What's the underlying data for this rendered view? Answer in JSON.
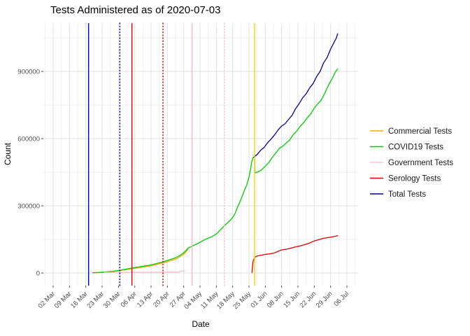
{
  "chart_data": {
    "type": "line",
    "title": "Tests Administered as of 2020-07-03",
    "xlabel": "Date",
    "ylabel": "Count",
    "legend_position": "right",
    "grid": true,
    "x_axis": {
      "unit": "days since 2020-03-02",
      "minor_step_days": 3.5,
      "ticks": [
        {
          "day": 0,
          "label": "02 Mar"
        },
        {
          "day": 7,
          "label": "09 Mar"
        },
        {
          "day": 14,
          "label": "16 Mar"
        },
        {
          "day": 21,
          "label": "23 Mar"
        },
        {
          "day": 28,
          "label": "30 Mar"
        },
        {
          "day": 35,
          "label": "06 Apr"
        },
        {
          "day": 42,
          "label": "13 Apr"
        },
        {
          "day": 49,
          "label": "20 Apr"
        },
        {
          "day": 56,
          "label": "27 Apr"
        },
        {
          "day": 63,
          "label": "04 May"
        },
        {
          "day": 70,
          "label": "11 May"
        },
        {
          "day": 77,
          "label": "18 May"
        },
        {
          "day": 84,
          "label": "25 May"
        },
        {
          "day": 91,
          "label": "01 Jun"
        },
        {
          "day": 98,
          "label": "08 Jun"
        },
        {
          "day": 105,
          "label": "15 Jun"
        },
        {
          "day": 112,
          "label": "22 Jun"
        },
        {
          "day": 119,
          "label": "29 Jun"
        },
        {
          "day": 126,
          "label": "06 Jul"
        }
      ]
    },
    "y_axis": {
      "range": [
        0,
        1115000
      ],
      "ticks": [
        {
          "value": 0,
          "label": "0"
        },
        {
          "value": 300000,
          "label": "300000"
        },
        {
          "value": 600000,
          "label": "600000"
        },
        {
          "value": 900000,
          "label": "900000"
        }
      ],
      "minor_values": [
        150000,
        450000,
        750000,
        1050000
      ]
    },
    "series": [
      {
        "name": "Commercial Tests",
        "color": "#FFA500",
        "dash": "solid",
        "points": [
          [
            17,
            500
          ],
          [
            20,
            2000
          ],
          [
            23,
            4200
          ],
          [
            26,
            7000
          ],
          [
            28,
            9500
          ],
          [
            31,
            14500
          ],
          [
            35,
            21000
          ],
          [
            38,
            26000
          ],
          [
            42,
            32000
          ],
          [
            45,
            39500
          ],
          [
            47,
            44500
          ],
          [
            49,
            51000
          ],
          [
            52,
            60000
          ],
          [
            54,
            70000
          ],
          [
            56,
            83000
          ],
          [
            57,
            94000
          ],
          [
            58,
            110000
          ]
        ]
      },
      {
        "name": "COVID19 Tests",
        "color": "#00CC00",
        "dash": "solid",
        "points": [
          [
            17,
            800
          ],
          [
            20,
            2500
          ],
          [
            23,
            5000
          ],
          [
            26,
            8000
          ],
          [
            28,
            11000
          ],
          [
            31,
            17000
          ],
          [
            35,
            24000
          ],
          [
            38,
            29000
          ],
          [
            42,
            36000
          ],
          [
            45,
            44000
          ],
          [
            47,
            49000
          ],
          [
            49,
            56000
          ],
          [
            52,
            66000
          ],
          [
            54,
            76000
          ],
          [
            56,
            90000
          ],
          [
            57,
            101000
          ],
          [
            58,
            112000
          ],
          [
            60,
            122000
          ],
          [
            63,
            137000
          ],
          [
            65,
            149000
          ],
          [
            66,
            153000
          ],
          [
            68,
            162000
          ],
          [
            70,
            174000
          ],
          [
            72,
            195000
          ],
          [
            74,
            217000
          ],
          [
            76,
            236000
          ],
          [
            77,
            248000
          ],
          [
            78,
            265000
          ],
          [
            79,
            292000
          ],
          [
            80,
            315000
          ],
          [
            81,
            340000
          ],
          [
            82,
            368000
          ],
          [
            83,
            392000
          ],
          [
            84,
            428000
          ],
          [
            84.6,
            458000
          ],
          [
            85.2,
            498000
          ],
          [
            85.8,
            516000
          ],
          [
            86.4,
            519000
          ],
          [
            86.5,
            447000
          ],
          [
            88,
            452000
          ],
          [
            89.5,
            461000
          ],
          [
            91,
            477000
          ],
          [
            92.5,
            493000
          ],
          [
            94,
            516000
          ],
          [
            95.5,
            536000
          ],
          [
            97,
            556000
          ],
          [
            98.5,
            566000
          ],
          [
            100,
            580000
          ],
          [
            101.5,
            594000
          ],
          [
            103,
            618000
          ],
          [
            104.5,
            634000
          ],
          [
            106,
            655000
          ],
          [
            107.5,
            672000
          ],
          [
            109,
            693000
          ],
          [
            110.5,
            710000
          ],
          [
            112,
            736000
          ],
          [
            113.5,
            755000
          ],
          [
            115,
            772000
          ],
          [
            116.5,
            802000
          ],
          [
            118,
            836000
          ],
          [
            119.5,
            864000
          ],
          [
            121,
            896000
          ],
          [
            122,
            911000
          ]
        ]
      },
      {
        "name": "Government Tests",
        "color": "#FFC0CB",
        "dash": "solid",
        "points": [
          [
            22,
            2500
          ],
          [
            30,
            2900
          ],
          [
            40,
            3400
          ],
          [
            48,
            3900
          ],
          [
            52,
            4200
          ],
          [
            54,
            4400
          ],
          [
            54.6,
            8400
          ],
          [
            56.5,
            8800
          ]
        ]
      },
      {
        "name": "Serology Tests",
        "color": "#E60000",
        "dash": "solid",
        "points": [
          [
            85.3,
            2000
          ],
          [
            85.5,
            30000
          ],
          [
            85.8,
            55000
          ],
          [
            86.2,
            63000
          ],
          [
            86.6,
            71000
          ],
          [
            87.5,
            76000
          ],
          [
            89,
            79000
          ],
          [
            91,
            83000
          ],
          [
            93,
            85500
          ],
          [
            95,
            90000
          ],
          [
            96.5,
            97000
          ],
          [
            98,
            103000
          ],
          [
            100,
            106000
          ],
          [
            102,
            111000
          ],
          [
            104,
            117000
          ],
          [
            106,
            121000
          ],
          [
            108,
            127000
          ],
          [
            110,
            134000
          ],
          [
            112,
            143000
          ],
          [
            114,
            149000
          ],
          [
            116,
            155000
          ],
          [
            118,
            158000
          ],
          [
            120,
            162000
          ],
          [
            122,
            167000
          ]
        ]
      },
      {
        "name": "Total Tests",
        "color": "#000099",
        "dash": "solid",
        "points": [
          [
            86,
            517000
          ],
          [
            87.5,
            529000
          ],
          [
            89,
            548000
          ],
          [
            90.5,
            561000
          ],
          [
            92,
            582000
          ],
          [
            93.5,
            598000
          ],
          [
            95,
            617000
          ],
          [
            96.5,
            639000
          ],
          [
            98,
            656000
          ],
          [
            99.5,
            667000
          ],
          [
            101,
            686000
          ],
          [
            102.5,
            704000
          ],
          [
            104,
            734000
          ],
          [
            105.5,
            756000
          ],
          [
            107,
            782000
          ],
          [
            108.5,
            800000
          ],
          [
            110,
            826000
          ],
          [
            111.5,
            846000
          ],
          [
            113,
            877000
          ],
          [
            114.5,
            900000
          ],
          [
            116,
            938000
          ],
          [
            117.5,
            962000
          ],
          [
            119,
            1000000
          ],
          [
            120.5,
            1030000
          ],
          [
            121.5,
            1050000
          ],
          [
            122,
            1068000
          ]
        ]
      }
    ],
    "vlines": [
      {
        "day": 15.2,
        "color": "#0000EE",
        "dash": "solid"
      },
      {
        "day": 28.6,
        "color": "#00008B",
        "dash": "dotted"
      },
      {
        "day": 33.8,
        "color": "#E60000",
        "dash": "solid"
      },
      {
        "day": 47.1,
        "color": "#D40000",
        "dash": "dotted"
      },
      {
        "day": 59.6,
        "color": "#FFB6C8",
        "dash": "solid"
      },
      {
        "day": 73.4,
        "color": "#FFC0CB",
        "dash": "dotted"
      },
      {
        "day": 86.4,
        "color": "#FFD300",
        "dash": "solid"
      }
    ]
  }
}
